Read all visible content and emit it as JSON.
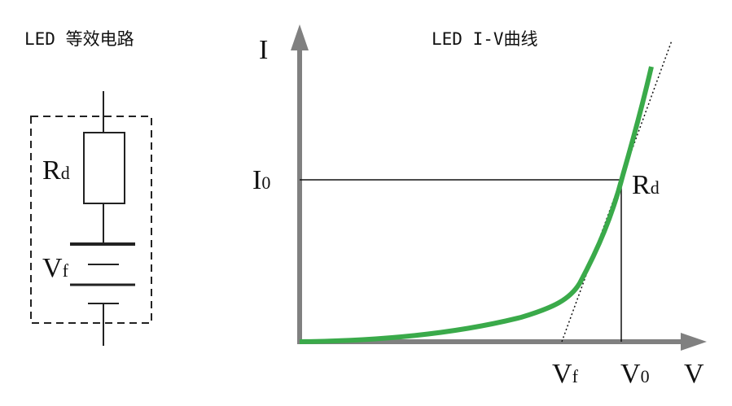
{
  "circuit": {
    "title": "LED 等效电路",
    "resistor": {
      "main": "R",
      "sub": "d"
    },
    "source": {
      "main": "V",
      "sub": "f"
    }
  },
  "graph": {
    "title": "LED I-V曲线",
    "y_axis": "I",
    "x_axis": "V",
    "current_point": {
      "main": "I",
      "sub": "0"
    },
    "slope_label": {
      "main": "R",
      "sub": "d"
    },
    "forward_voltage": {
      "main": "V",
      "sub": "f"
    },
    "voltage_point": {
      "main": "V",
      "sub": "0"
    }
  }
}
